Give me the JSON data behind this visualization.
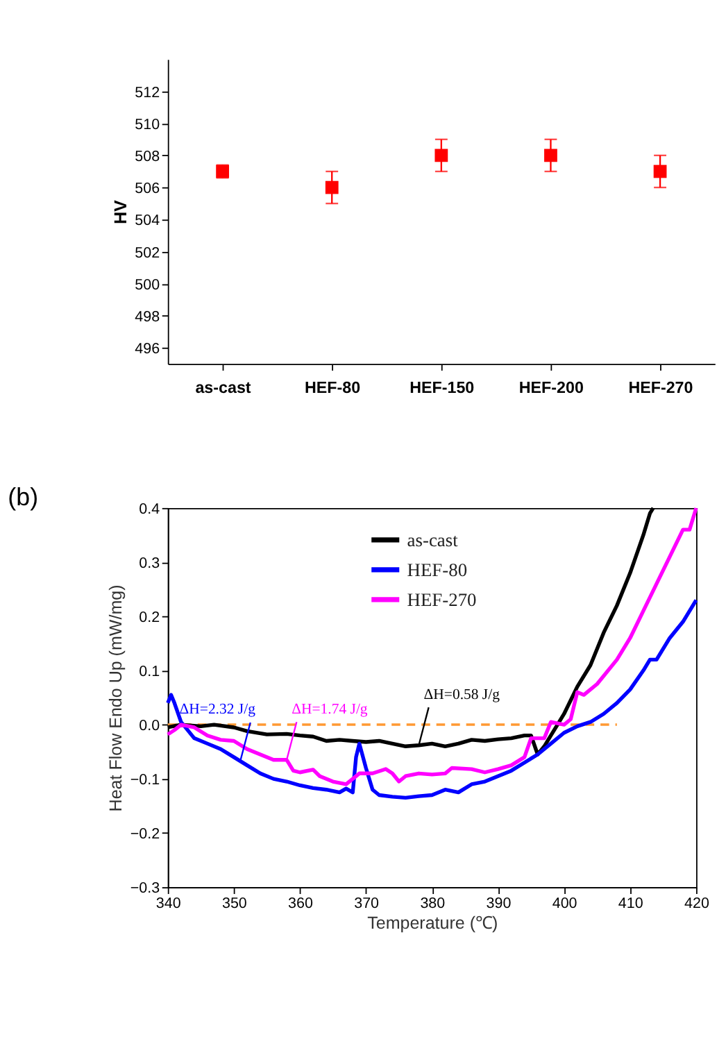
{
  "chart_data": [
    {
      "type": "scatter",
      "ylabel": "HV",
      "categories": [
        "as-cast",
        "HEF-80",
        "HEF-150",
        "HEF-200",
        "HEF-270"
      ],
      "series": [
        {
          "color": "#ff0000",
          "values": [
            507,
            506,
            508,
            508,
            507
          ],
          "errors": [
            0.4,
            1,
            [
              507,
              509
            ],
            [
              507,
              509
            ],
            1
          ]
        }
      ],
      "ylim": [
        495,
        514
      ],
      "yticks": [
        496,
        498,
        500,
        502,
        504,
        506,
        508,
        510,
        512
      ],
      "marker": "square",
      "grid": false
    },
    {
      "type": "line",
      "title": "(b)",
      "xlabel": "Temperature (℃)",
      "ylabel": "Heat Flow Endo Up (mW/mg)",
      "xlim": [
        340,
        420
      ],
      "xticks": [
        340,
        350,
        360,
        370,
        380,
        390,
        400,
        410,
        420
      ],
      "ylim": [
        -0.3,
        0.4
      ],
      "yticks": [
        -0.3,
        -0.2,
        -0.1,
        {
          "value": 0,
          "label": "0.0"
        },
        0.1,
        0.2,
        0.3,
        0.4
      ],
      "grid": false,
      "legend": "top",
      "series": [
        {
          "name": "as-cast",
          "color": "#000000",
          "x": [
            340,
            342,
            345,
            347,
            350,
            352,
            355,
            358,
            360,
            362,
            364,
            366,
            368,
            370,
            372,
            374,
            376,
            378,
            380,
            382,
            384,
            386,
            388,
            390,
            392,
            394,
            395,
            396,
            397,
            398,
            399,
            400,
            401,
            402,
            404,
            406,
            408,
            410,
            412,
            413,
            413.5
          ],
          "values": [
            -0.005,
            0,
            -0.003,
            0,
            -0.005,
            -0.012,
            -0.018,
            -0.017,
            -0.02,
            -0.022,
            -0.03,
            -0.028,
            -0.03,
            -0.032,
            -0.03,
            -0.035,
            -0.04,
            -0.038,
            -0.035,
            -0.04,
            -0.035,
            -0.028,
            -0.03,
            -0.027,
            -0.025,
            -0.02,
            -0.02,
            -0.055,
            -0.04,
            -0.02,
            0.0,
            0.02,
            0.045,
            0.07,
            0.11,
            0.17,
            0.22,
            0.28,
            0.35,
            0.39,
            0.4
          ]
        },
        {
          "name": "HEF-80",
          "color": "#0000ff",
          "x": [
            340,
            340.5,
            341,
            342,
            343,
            344,
            346,
            348,
            350,
            352,
            354,
            356,
            358,
            360,
            362,
            364,
            366,
            367,
            368,
            368.5,
            369,
            370,
            371,
            372,
            374,
            376,
            378,
            380,
            382,
            384,
            386,
            388,
            390,
            392,
            394,
            396,
            398,
            400,
            402,
            404,
            406,
            408,
            410,
            412,
            413,
            414,
            416,
            418,
            420
          ],
          "values": [
            0.04,
            0.055,
            0.04,
            0.005,
            -0.01,
            -0.025,
            -0.035,
            -0.045,
            -0.06,
            -0.075,
            -0.09,
            -0.1,
            -0.105,
            -0.112,
            -0.117,
            -0.12,
            -0.125,
            -0.118,
            -0.125,
            -0.06,
            -0.035,
            -0.08,
            -0.12,
            -0.13,
            -0.133,
            -0.135,
            -0.132,
            -0.13,
            -0.12,
            -0.125,
            -0.11,
            -0.105,
            -0.095,
            -0.085,
            -0.07,
            -0.055,
            -0.035,
            -0.015,
            -0.003,
            0.005,
            0.02,
            0.04,
            0.065,
            0.1,
            0.12,
            0.12,
            0.16,
            0.19,
            0.23
          ]
        },
        {
          "name": "HEF-270",
          "color": "#ff00ff",
          "x": [
            340,
            341,
            342,
            344,
            346,
            348,
            350,
            352,
            354,
            356,
            358,
            359,
            360,
            362,
            363,
            365,
            367,
            368,
            369,
            371,
            373,
            374,
            375,
            376,
            378,
            380,
            382,
            383,
            386,
            388,
            390,
            392,
            394,
            395,
            397,
            398,
            400,
            401,
            402,
            403,
            405,
            408,
            410,
            412,
            414,
            416,
            418,
            419,
            420
          ],
          "values": [
            -0.018,
            -0.01,
            0,
            -0.005,
            -0.02,
            -0.028,
            -0.03,
            -0.045,
            -0.055,
            -0.065,
            -0.065,
            -0.085,
            -0.088,
            -0.083,
            -0.095,
            -0.105,
            -0.11,
            -0.1,
            -0.09,
            -0.09,
            -0.082,
            -0.09,
            -0.105,
            -0.095,
            -0.09,
            -0.092,
            -0.09,
            -0.08,
            -0.082,
            -0.088,
            -0.082,
            -0.075,
            -0.06,
            -0.025,
            -0.025,
            0.005,
            0.0,
            0.01,
            0.06,
            0.055,
            0.075,
            0.12,
            0.16,
            0.21,
            0.26,
            0.31,
            0.36,
            0.36,
            0.4
          ]
        },
        {
          "color": "#ff9933",
          "line_style": "dashed",
          "x": [
            340,
            408
          ],
          "values": [
            0,
            0
          ]
        }
      ],
      "annotations": [
        {
          "text": "ΔH=0.58 J/g",
          "x": 378,
          "y": -0.038
        },
        {
          "text": "ΔH=2.32 J/g",
          "x": 351,
          "y": -0.066
        },
        {
          "text": "ΔH=1.74 J/g",
          "x": 358,
          "y": -0.065
        }
      ]
    }
  ]
}
